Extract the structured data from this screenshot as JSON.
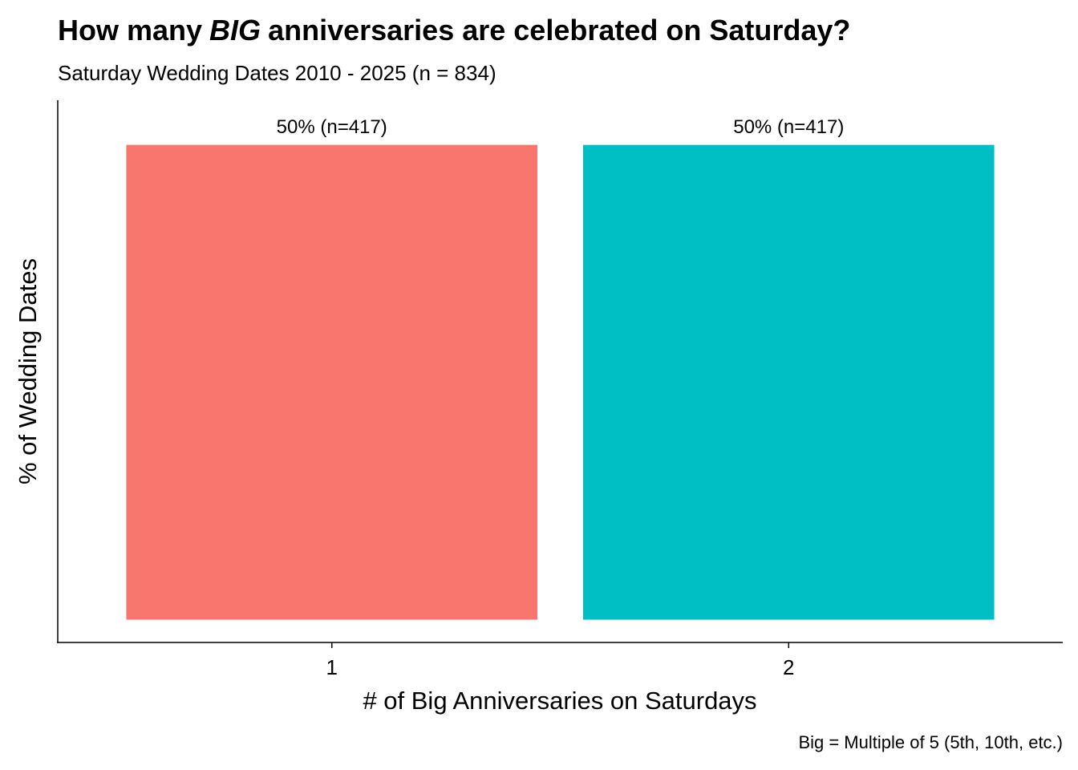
{
  "chart_data": {
    "type": "bar",
    "title": [
      "How many",
      "BIG",
      "anniversaries are celebrated on Saturday?"
    ],
    "subtitle": "Saturday Wedding Dates 2010 - 2025 (n = 834)",
    "x_label": "# of Big Anniversaries on Saturdays",
    "y_label": "% of Wedding Dates",
    "caption": "Big = Multiple of 5 (5th, 10th, etc.)",
    "categories": [
      "1",
      "2"
    ],
    "values": [
      50,
      50
    ],
    "value_labels": [
      "50% (n=417)",
      "50% (n=417)"
    ],
    "colors": [
      "#F8766D",
      "#00BFC4"
    ],
    "ylim": [
      -2.4,
      54.7
    ]
  }
}
